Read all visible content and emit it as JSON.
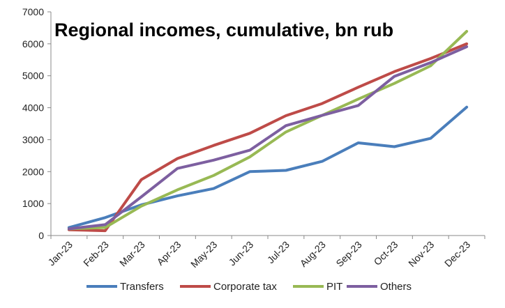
{
  "chart_data": {
    "type": "line",
    "title": "Regional incomes, cumulative, bn rub",
    "xlabel": "",
    "ylabel": "",
    "categories": [
      "Jan-23",
      "Feb-23",
      "Mar-23",
      "Apr-23",
      "May-23",
      "Jun-23",
      "Jul-23",
      "Aug-23",
      "Sep-23",
      "Oct-23",
      "Nov-23",
      "Dec-23"
    ],
    "ylim": [
      0,
      7000
    ],
    "yticks": [
      "0",
      "1000",
      "2000",
      "3000",
      "4000",
      "5000",
      "6000",
      "7000"
    ],
    "grid": false,
    "legend_position": "bottom",
    "series": [
      {
        "name": "Transfers",
        "color": "#4a7ebb",
        "values": [
          250,
          560,
          960,
          1240,
          1470,
          2000,
          2040,
          2320,
          2900,
          2780,
          3040,
          4020
        ]
      },
      {
        "name": "Corporate tax",
        "color": "#be4b48",
        "values": [
          180,
          150,
          1750,
          2410,
          2820,
          3200,
          3750,
          4130,
          4640,
          5130,
          5540,
          6000
        ]
      },
      {
        "name": "PIT",
        "color": "#98b954",
        "values": [
          210,
          250,
          920,
          1430,
          1880,
          2460,
          3240,
          3760,
          4270,
          4760,
          5310,
          6390
        ]
      },
      {
        "name": "Others",
        "color": "#7d5fa0",
        "values": [
          210,
          340,
          1210,
          2100,
          2360,
          2670,
          3440,
          3760,
          4070,
          4980,
          5410,
          5910
        ]
      }
    ]
  }
}
